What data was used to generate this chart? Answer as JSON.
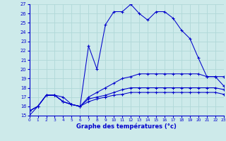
{
  "xlabel": "Graphe des températures (°c)",
  "bg_color": "#cdeaea",
  "grid_color": "#b0d8d8",
  "line_color": "#0000cc",
  "ylim": [
    15,
    27
  ],
  "xlim": [
    0,
    23
  ],
  "yticks": [
    15,
    16,
    17,
    18,
    19,
    20,
    21,
    22,
    23,
    24,
    25,
    26,
    27
  ],
  "xticks": [
    0,
    1,
    2,
    3,
    4,
    5,
    6,
    7,
    8,
    9,
    10,
    11,
    12,
    13,
    14,
    15,
    16,
    17,
    18,
    19,
    20,
    21,
    22,
    23
  ],
  "series": [
    [
      15,
      16,
      17.2,
      17.2,
      17.0,
      16.2,
      16.0,
      22.5,
      20.0,
      24.8,
      26.2,
      26.2,
      27.0,
      26.0,
      25.3,
      26.2,
      26.2,
      25.5,
      24.2,
      23.3,
      21.2,
      19.2,
      19.2,
      19.2
    ],
    [
      15.5,
      16.0,
      17.2,
      17.2,
      16.5,
      16.2,
      16.0,
      17.0,
      17.5,
      18.0,
      18.5,
      19.0,
      19.2,
      19.5,
      19.5,
      19.5,
      19.5,
      19.5,
      19.5,
      19.5,
      19.5,
      19.2,
      19.2,
      18.2
    ],
    [
      15.5,
      16.0,
      17.2,
      17.2,
      16.5,
      16.2,
      16.0,
      16.8,
      17.0,
      17.2,
      17.5,
      17.8,
      18.0,
      18.0,
      18.0,
      18.0,
      18.0,
      18.0,
      18.0,
      18.0,
      18.0,
      18.0,
      18.0,
      17.8
    ],
    [
      15.5,
      16.0,
      17.2,
      17.2,
      16.5,
      16.2,
      16.0,
      16.5,
      16.8,
      17.0,
      17.2,
      17.3,
      17.5,
      17.5,
      17.5,
      17.5,
      17.5,
      17.5,
      17.5,
      17.5,
      17.5,
      17.5,
      17.5,
      17.3
    ]
  ]
}
